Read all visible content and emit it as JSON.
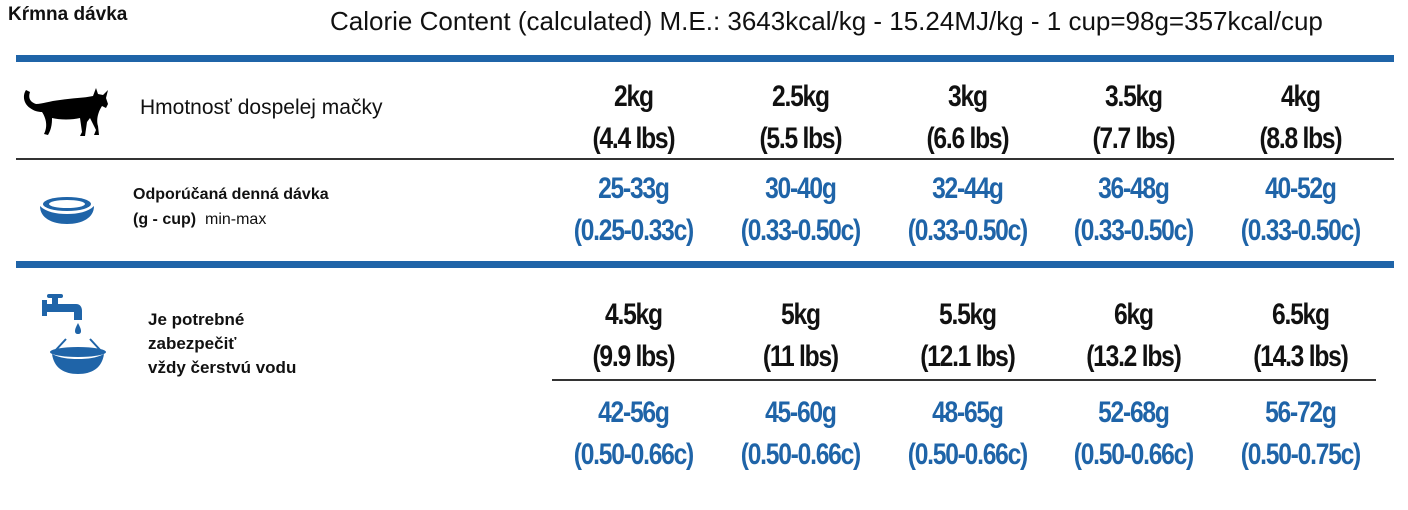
{
  "header": {
    "title": "Kŕmna dávka",
    "calorie": "Calorie Content (calculated) M.E.: 3643kcal/kg - 15.24MJ/kg - 1 cup=98g=357kcal/cup"
  },
  "labels": {
    "weight": "Hmotnosť dospelej mačky",
    "daily_line1": "Odporúčaná denná dávka",
    "daily_line2": "(g - cup)",
    "daily_minmax": "min-max",
    "water_line1": "Je potrebné",
    "water_line2": "zabezpečiť",
    "water_line3": "vždy čerstvú vodu"
  },
  "icons": {
    "cat": "cat-icon",
    "bowl": "food-bowl-icon",
    "tap": "water-tap-bowl-icon"
  },
  "colors": {
    "accent": "#1f64a8",
    "text": "#111111"
  },
  "table": {
    "weights_a": [
      {
        "kg": "2kg",
        "lbs": "(4.4 lbs)"
      },
      {
        "kg": "2.5kg",
        "lbs": "(5.5 lbs)"
      },
      {
        "kg": "3kg",
        "lbs": "(6.6 lbs)"
      },
      {
        "kg": "3.5kg",
        "lbs": "(7.7 lbs)"
      },
      {
        "kg": "4kg",
        "lbs": "(8.8 lbs)"
      }
    ],
    "doses_a": [
      {
        "g": "25-33g",
        "cup": "(0.25-0.33c)"
      },
      {
        "g": "30-40g",
        "cup": "(0.33-0.50c)"
      },
      {
        "g": "32-44g",
        "cup": "(0.33-0.50c)"
      },
      {
        "g": "36-48g",
        "cup": "(0.33-0.50c)"
      },
      {
        "g": "40-52g",
        "cup": "(0.33-0.50c)"
      }
    ],
    "weights_b": [
      {
        "kg": "4.5kg",
        "lbs": "(9.9 lbs)"
      },
      {
        "kg": "5kg",
        "lbs": "(11 lbs)"
      },
      {
        "kg": "5.5kg",
        "lbs": "(12.1 lbs)"
      },
      {
        "kg": "6kg",
        "lbs": "(13.2 lbs)"
      },
      {
        "kg": "6.5kg",
        "lbs": "(14.3 lbs)"
      }
    ],
    "doses_b": [
      {
        "g": "42-56g",
        "cup": "(0.50-0.66c)"
      },
      {
        "g": "45-60g",
        "cup": "(0.50-0.66c)"
      },
      {
        "g": "48-65g",
        "cup": "(0.50-0.66c)"
      },
      {
        "g": "52-68g",
        "cup": "(0.50-0.66c)"
      },
      {
        "g": "56-72g",
        "cup": "(0.50-0.75c)"
      }
    ]
  }
}
